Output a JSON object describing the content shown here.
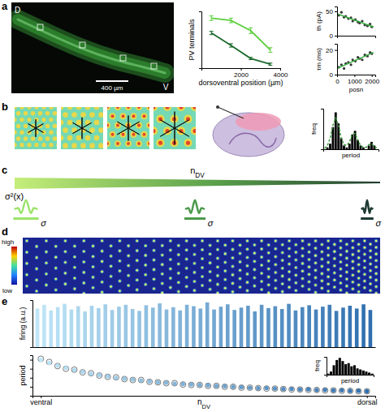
{
  "panel_labels": [
    "a",
    "b",
    "c",
    "d",
    "e"
  ],
  "image_a": {
    "dorsal": "D",
    "ventral": "V",
    "scale_bar": "400 µm"
  },
  "diagram_c": {
    "variance_label": "σ²(x)",
    "axis_label": "nDV",
    "kernel_labels": [
      "σ",
      "σ",
      "σ"
    ]
  },
  "heatmap_d": {
    "legend_high": "high",
    "legend_low": "low"
  },
  "chart_data": [
    {
      "type": "line",
      "y_label": "PV terminals",
      "x_label": "dorsoventral position (µm)",
      "x": [
        500,
        1500,
        2500,
        3500
      ],
      "xlim": [
        0,
        4000
      ],
      "xticks": [
        2000,
        4000
      ],
      "ylim": [
        0,
        1
      ],
      "tick_labels": "x",
      "series": [
        {
          "color": "#5ccf3c",
          "values": [
            0.88,
            0.84,
            0.66,
            0.32
          ],
          "errors": [
            0.04,
            0.04,
            0.05,
            0.04
          ]
        },
        {
          "color": "#1e6b2e",
          "values": [
            0.62,
            0.4,
            0.17,
            0.07
          ],
          "errors": [
            0.03,
            0.03,
            0.02,
            0.02
          ]
        }
      ]
    },
    {
      "type": "scatter",
      "y_label": "th (pA)",
      "x": [
        100,
        250,
        400,
        500,
        650,
        800,
        900,
        1050,
        1200,
        1300,
        1450,
        1600,
        1750,
        1900,
        2000
      ],
      "xlim": [
        0,
        2200
      ],
      "ylim": [
        0,
        60
      ],
      "yticks": [
        0,
        50
      ],
      "tick_labels": "y",
      "series": [
        {
          "marker": "circle",
          "color": "#333333",
          "values": [
            42,
            48,
            38,
            40,
            35,
            37,
            30,
            33,
            28,
            26,
            30,
            22,
            20,
            24,
            18
          ]
        },
        {
          "type": "line",
          "color": "#3cb043",
          "x": [
            0,
            2100
          ],
          "values": [
            45,
            18
          ]
        }
      ]
    },
    {
      "type": "scatter",
      "y_label": "τm (ms)",
      "x_label": "posn",
      "x": [
        100,
        250,
        400,
        500,
        650,
        800,
        900,
        1050,
        1200,
        1300,
        1450,
        1600,
        1750,
        1900,
        2000
      ],
      "xlim": [
        0,
        2200
      ],
      "xticks": [
        0,
        1000,
        2000
      ],
      "ylim": [
        0,
        25
      ],
      "yticks": [
        0,
        20
      ],
      "series": [
        {
          "marker": "circle",
          "color": "#333333",
          "values": [
            6,
            8,
            5,
            9,
            10,
            8,
            12,
            11,
            14,
            13,
            12,
            16,
            15,
            18,
            17
          ]
        },
        {
          "type": "line",
          "color": "#3cb043",
          "x": [
            0,
            2100
          ],
          "values": [
            5,
            18
          ]
        }
      ]
    },
    {
      "type": "histogram",
      "x_label": "period",
      "y_label": "freq",
      "bins": [
        0,
        1,
        2,
        3,
        4,
        5,
        6,
        7,
        8,
        9,
        10,
        11,
        12,
        13,
        14,
        15,
        16,
        17,
        18,
        19,
        20
      ],
      "counts": [
        0,
        1,
        3,
        12,
        20,
        14,
        6,
        2,
        1,
        3,
        8,
        10,
        5,
        2,
        1,
        0,
        2,
        4,
        2,
        0
      ],
      "color": "#000000",
      "xlim": [
        0,
        20
      ],
      "ylim": [
        0,
        22
      ],
      "tick_labels": false,
      "series": [
        {
          "type": "line",
          "line_style": "dashed",
          "color": "#3a9a3a",
          "x": [
            0.5,
            1.5,
            2.5,
            3.5,
            4.5,
            5.5,
            6.5,
            7.5,
            8.5,
            9.5,
            10.5,
            11.5,
            12.5,
            13.5,
            14.5,
            15.5,
            16.5,
            17.5,
            18.5,
            19.5
          ],
          "values": [
            0.5,
            2,
            6,
            13,
            17,
            13,
            6,
            2.5,
            2,
            4,
            8,
            8.5,
            5,
            2,
            1,
            1,
            2.5,
            3,
            1.5,
            0.5
          ]
        }
      ]
    },
    {
      "type": "bar",
      "y_label": "firing (a.u.)",
      "color": "#2f6fb0",
      "ylim": [
        0,
        1
      ],
      "tick_labels": false,
      "values": [
        0.82,
        0.9,
        0.78,
        0.85,
        0.92,
        0.8,
        0.87,
        0.76,
        0.88,
        0.83,
        0.91,
        0.79,
        0.86,
        0.9,
        0.81,
        0.77,
        0.89,
        0.84,
        0.93,
        0.8,
        0.85,
        0.78,
        0.9,
        0.87,
        0.82,
        0.95,
        0.8,
        0.86,
        0.91,
        0.79,
        0.84,
        0.88,
        0.76,
        0.9,
        0.83,
        0.87,
        0.81,
        0.92,
        0.78,
        0.85,
        0.89,
        0.8,
        0.86,
        0.9,
        0.77,
        0.84,
        0.88,
        0.82,
        0.91,
        0.79
      ]
    },
    {
      "type": "scatter",
      "x_label": "nDV",
      "y_label": "period",
      "x": [
        0,
        1,
        2,
        3,
        4,
        5,
        6,
        7,
        8,
        9,
        10,
        11,
        12,
        13,
        14,
        15,
        16,
        17,
        18,
        19,
        20,
        21,
        22,
        23,
        24,
        25,
        26,
        27,
        28,
        29,
        30,
        31,
        32,
        33,
        34,
        35,
        36,
        37,
        38,
        39
      ],
      "xlim": [
        -1,
        40
      ],
      "xticks": [
        {
          "value": 0,
          "label": "ventral"
        },
        {
          "value": 39,
          "label": "dorsal"
        }
      ],
      "ylim": [
        0.2,
        1.1
      ],
      "yticks": [
        0.4,
        0.6,
        0.8,
        1
      ],
      "tick_labels": "x",
      "series": [
        {
          "marker": "open-circle",
          "color": "#777777",
          "values": [
            1.02,
            0.95,
            0.86,
            0.8,
            0.78,
            0.72,
            0.7,
            0.65,
            0.62,
            0.61,
            0.57,
            0.55,
            0.55,
            0.51,
            0.5,
            0.48,
            0.48,
            0.45,
            0.44,
            0.44,
            0.42,
            0.42,
            0.4,
            0.4,
            0.38,
            0.38,
            0.37,
            0.36,
            0.36,
            0.35,
            0.34,
            0.34,
            0.33,
            0.33,
            0.32,
            0.32,
            0.31,
            0.31,
            0.3,
            0.3
          ]
        },
        {
          "marker": "circle",
          "color": "#2f6fb0",
          "values": [
            1.0,
            0.93,
            0.87,
            0.82,
            0.77,
            0.73,
            0.69,
            0.66,
            0.63,
            0.6,
            0.58,
            0.56,
            0.54,
            0.52,
            0.5,
            0.49,
            0.47,
            0.46,
            0.45,
            0.44,
            0.43,
            0.42,
            0.41,
            0.4,
            0.39,
            0.38,
            0.37,
            0.37,
            0.36,
            0.35,
            0.35,
            0.34,
            0.34,
            0.33,
            0.33,
            0.32,
            0.32,
            0.31,
            0.31,
            0.3
          ]
        }
      ]
    },
    {
      "type": "histogram",
      "x_label": "period",
      "y_label": "freq",
      "bins": [
        0,
        1,
        2,
        3,
        4,
        5,
        6,
        7,
        8,
        9,
        10,
        11,
        12,
        13,
        14,
        15,
        16
      ],
      "counts": [
        1,
        3,
        9,
        14,
        16,
        13,
        10,
        11,
        8,
        9,
        6,
        5,
        4,
        3,
        2,
        1
      ],
      "color": "#000000",
      "xlim": [
        0,
        16
      ],
      "ylim": [
        0,
        17
      ],
      "tick_labels": false
    }
  ]
}
